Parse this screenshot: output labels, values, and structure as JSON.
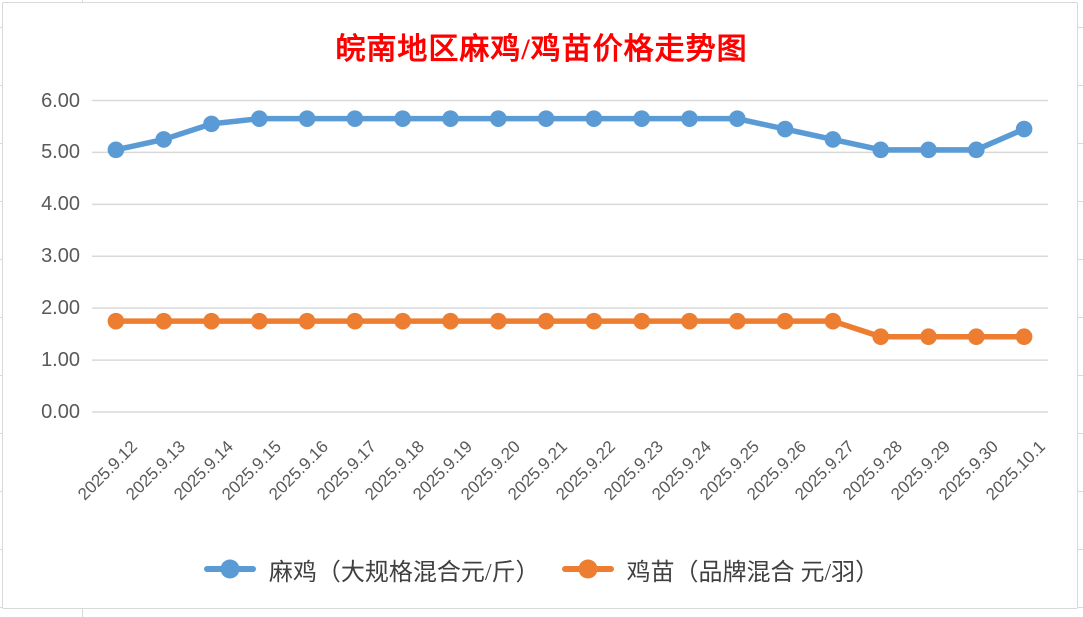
{
  "title": {
    "text": "皖南地区麻鸡/鸡苗价格走势图",
    "color": "#FF0000"
  },
  "chart_data": {
    "type": "line",
    "categories": [
      "2025.9.12",
      "2025.9.13",
      "2025.9.14",
      "2025.9.15",
      "2025.9.16",
      "2025.9.17",
      "2025.9.18",
      "2025.9.19",
      "2025.9.20",
      "2025.9.21",
      "2025.9.22",
      "2025.9.23",
      "2025.9.24",
      "2025.9.25",
      "2025.9.26",
      "2025.9.27",
      "2025.9.28",
      "2025.9.29",
      "2025.9.30",
      "2025.10.1"
    ],
    "series": [
      {
        "name": "麻鸡（大规格混合元/斤）",
        "color": "#5B9BD5",
        "values": [
          5.05,
          5.25,
          5.55,
          5.65,
          5.65,
          5.65,
          5.65,
          5.65,
          5.65,
          5.65,
          5.65,
          5.65,
          5.65,
          5.65,
          5.45,
          5.25,
          5.05,
          5.05,
          5.05,
          5.45
        ]
      },
      {
        "name": "鸡苗（品牌混合 元/羽）",
        "color": "#ED7D31",
        "values": [
          1.75,
          1.75,
          1.75,
          1.75,
          1.75,
          1.75,
          1.75,
          1.75,
          1.75,
          1.75,
          1.75,
          1.75,
          1.75,
          1.75,
          1.75,
          1.75,
          1.45,
          1.45,
          1.45,
          1.45
        ]
      }
    ],
    "xlabel": "",
    "ylabel": "",
    "ylim": [
      0,
      6
    ],
    "y_tick_labels": [
      "0.00",
      "1.00",
      "2.00",
      "3.00",
      "4.00",
      "5.00",
      "6.00"
    ],
    "grid": true,
    "legend_position": "bottom",
    "colors": {
      "gridline": "#D9D9D9",
      "axis_text": "#595959",
      "legend_text": "#404040",
      "chart_border": "#D9D9D9"
    }
  }
}
